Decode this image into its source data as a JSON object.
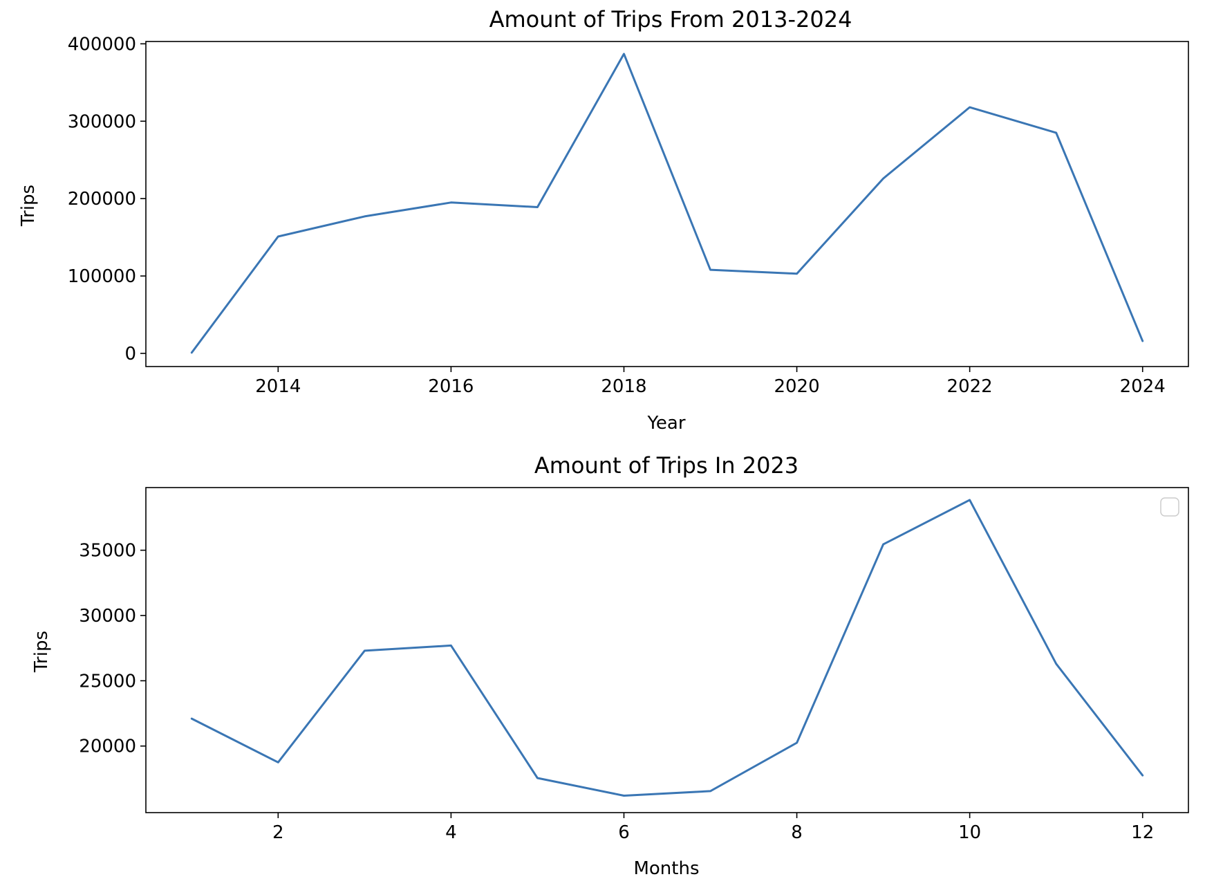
{
  "colors": {
    "series": "#3a76b4",
    "frame": "#000000",
    "legend_border": "#cccccc"
  },
  "chart_data": [
    {
      "type": "line",
      "title": "Amount of Trips From 2013-2024",
      "xlabel": "Year",
      "ylabel": "Trips",
      "xlim": [
        2012.47,
        2024.53
      ],
      "ylim": [
        -17000,
        403000
      ],
      "xticks": [
        2014,
        2016,
        2018,
        2020,
        2022,
        2024
      ],
      "yticks": [
        0,
        100000,
        200000,
        300000,
        400000
      ],
      "x": [
        2013,
        2014,
        2015,
        2016,
        2017,
        2018,
        2019,
        2020,
        2021,
        2022,
        2023,
        2024
      ],
      "series": [
        {
          "values": [
            1000,
            151000,
            177000,
            195000,
            189000,
            387000,
            108000,
            103000,
            226000,
            318000,
            285000,
            16000
          ]
        }
      ],
      "grid": false,
      "legend": false
    },
    {
      "type": "line",
      "title": "Amount of Trips In 2023",
      "xlabel": "Months",
      "ylabel": "Trips",
      "xlim": [
        0.47,
        12.53
      ],
      "ylim": [
        14900,
        39800
      ],
      "xticks": [
        2,
        4,
        6,
        8,
        10,
        12
      ],
      "yticks": [
        20000,
        25000,
        30000,
        35000
      ],
      "x": [
        1,
        2,
        3,
        4,
        5,
        6,
        7,
        8,
        9,
        10,
        11,
        12
      ],
      "series": [
        {
          "values": [
            22100,
            18750,
            27300,
            27700,
            17550,
            16200,
            16550,
            20250,
            35450,
            38850,
            26300,
            17750
          ]
        }
      ],
      "grid": false,
      "legend": true,
      "legend_placement": "upper right",
      "legend_entries": []
    }
  ]
}
